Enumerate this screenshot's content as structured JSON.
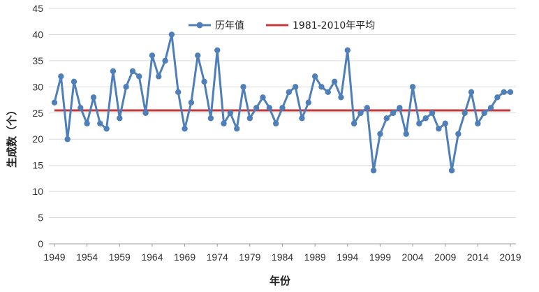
{
  "chart_data": {
    "type": "line",
    "xlabel": "年份",
    "ylabel": "生成数（个）",
    "ylim": [
      0,
      45
    ],
    "xlim": [
      1949,
      2019
    ],
    "yticks": [
      0,
      5,
      10,
      15,
      20,
      25,
      30,
      35,
      40,
      45
    ],
    "xticks": [
      1949,
      1954,
      1959,
      1964,
      1969,
      1974,
      1979,
      1984,
      1989,
      1994,
      1999,
      2004,
      2009,
      2014,
      2019
    ],
    "grid": "horizontal",
    "legend_position": "top",
    "series": [
      {
        "name": "历年值",
        "color": "#4f7fb8",
        "marker": "circle",
        "x": [
          1949,
          1950,
          1951,
          1952,
          1953,
          1954,
          1955,
          1956,
          1957,
          1958,
          1959,
          1960,
          1961,
          1962,
          1963,
          1964,
          1965,
          1966,
          1967,
          1968,
          1969,
          1970,
          1971,
          1972,
          1973,
          1974,
          1975,
          1976,
          1977,
          1978,
          1979,
          1980,
          1981,
          1982,
          1983,
          1984,
          1985,
          1986,
          1987,
          1988,
          1989,
          1990,
          1991,
          1992,
          1993,
          1994,
          1995,
          1996,
          1997,
          1998,
          1999,
          2000,
          2001,
          2002,
          2003,
          2004,
          2005,
          2006,
          2007,
          2008,
          2009,
          2010,
          2011,
          2012,
          2013,
          2014,
          2015,
          2016,
          2017,
          2018,
          2019
        ],
        "values": [
          27,
          32,
          20,
          31,
          26,
          23,
          28,
          23,
          22,
          33,
          24,
          30,
          33,
          32,
          25,
          36,
          32,
          35,
          40,
          29,
          22,
          27,
          36,
          31,
          24,
          37,
          23,
          25,
          22,
          30,
          24,
          26,
          28,
          26,
          23,
          26,
          29,
          30,
          24,
          27,
          32,
          30,
          29,
          31,
          28,
          37,
          23,
          25,
          26,
          14,
          21,
          24,
          25,
          26,
          21,
          30,
          23,
          24,
          25,
          22,
          23,
          14,
          21,
          25,
          29,
          23,
          25,
          26,
          28,
          29,
          29
        ]
      },
      {
        "name": "1981-2010年平均",
        "color": "#c0393b",
        "values": [
          25.5
        ]
      }
    ]
  }
}
